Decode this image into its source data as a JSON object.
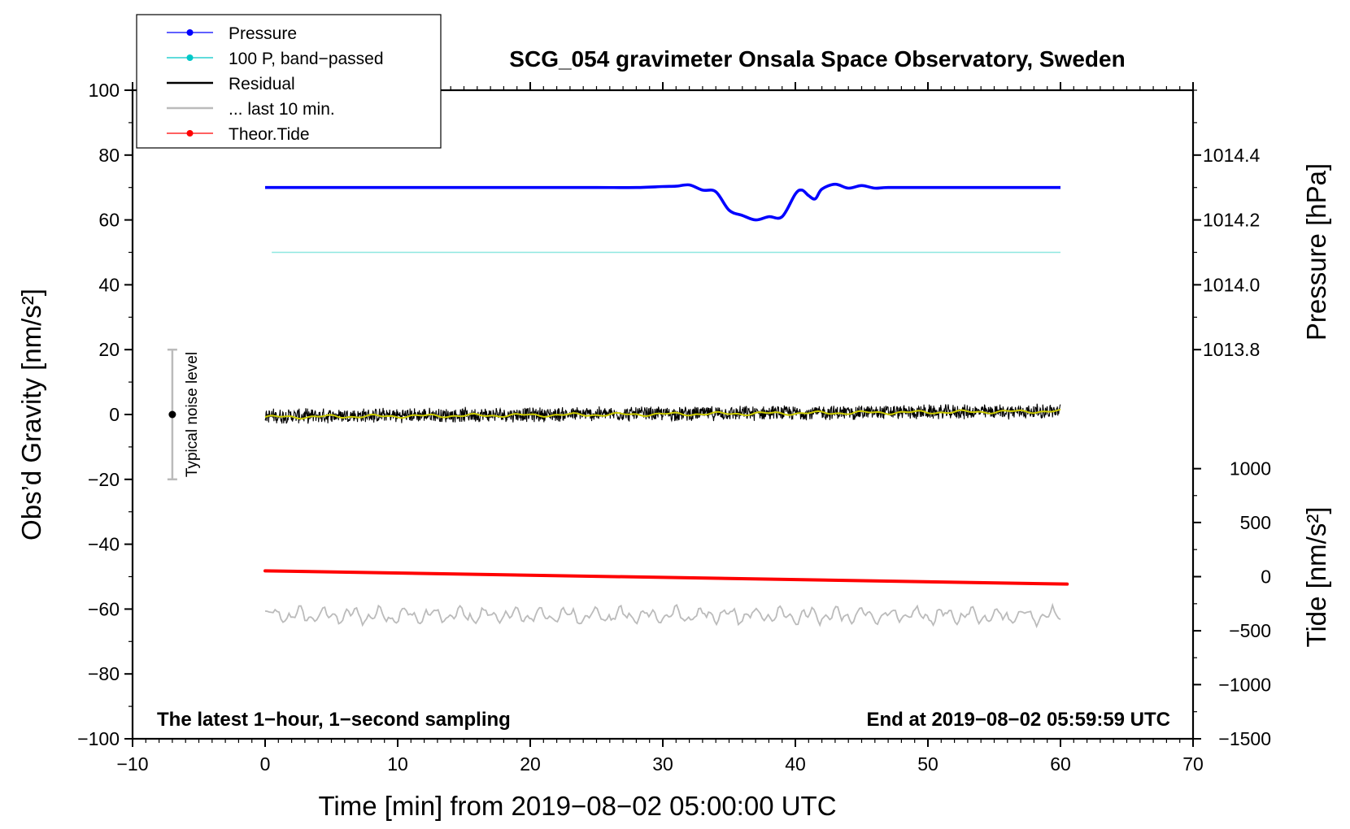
{
  "chart_data": {
    "type": "line",
    "title": "SCG_054 gravimeter Onsala Space Observatory, Sweden",
    "xlabel": "Time [min] from 2019−08−02 05:00:00 UTC",
    "ylabel_left": "Obs’d Gravity [nm/s²]",
    "ylabel_right_pressure": "Pressure [hPa]",
    "ylabel_right_tide": "Tide [nm/s²]",
    "xlim": [
      -10,
      70
    ],
    "ylim_left": [
      -100,
      100
    ],
    "x_ticks": [
      -10,
      0,
      10,
      20,
      30,
      40,
      50,
      60,
      70
    ],
    "x_tick_labels": [
      "−10",
      "0",
      "10",
      "20",
      "30",
      "40",
      "50",
      "60",
      "70"
    ],
    "y_ticks_left": [
      100,
      80,
      60,
      40,
      20,
      0,
      -20,
      -40,
      -60,
      -80,
      -100
    ],
    "y_tick_labels_left": [
      "100",
      "80",
      "60",
      "40",
      "20",
      "0",
      "−20",
      "−40",
      "−60",
      "−80",
      "−100"
    ],
    "pressure_axis": {
      "ticks": [
        1014.4,
        1014.2,
        1014.0,
        1013.8
      ],
      "tick_labels": [
        "1014.4",
        "1014.2",
        "1014.0",
        "1013.8"
      ],
      "gravity_equiv": [
        80,
        60,
        40,
        20
      ]
    },
    "tide_axis": {
      "ticks": [
        1000,
        500,
        0,
        -500,
        -1000,
        -1500
      ],
      "tick_labels": [
        "1000",
        "500",
        "0",
        "−500",
        "−1000",
        "−1500"
      ],
      "gravity_equiv": [
        -16.7,
        -33.3,
        -50,
        -66.7,
        -83.3,
        -100
      ]
    },
    "legend": [
      {
        "label": "Pressure",
        "color": "#0000ff",
        "marker": true
      },
      {
        "label": "100 P, band−passed",
        "color": "#00c8c8",
        "marker": true
      },
      {
        "label": "Residual",
        "color": "#000000",
        "marker": false
      },
      {
        "label": "... last 10 min.",
        "color": "#bbbbbb",
        "marker": false
      },
      {
        "label": "Theor.Tide",
        "color": "#ff0000",
        "marker": true
      }
    ],
    "series": [
      {
        "name": "Pressure",
        "color": "#0000ff",
        "x": [
          0,
          5,
          10,
          15,
          20,
          25,
          28,
          30,
          31,
          32,
          33,
          34,
          35,
          36,
          37,
          38,
          39,
          40,
          40.5,
          41,
          41.5,
          42,
          43,
          44,
          45,
          46,
          47,
          50,
          55,
          60
        ],
        "y": [
          70,
          70,
          70,
          70,
          70,
          70,
          70,
          70.3,
          70.4,
          70.8,
          69.2,
          68.7,
          63,
          61.4,
          60,
          61,
          61,
          68,
          69.2,
          67.5,
          66.5,
          69.5,
          71,
          69.8,
          70.6,
          69.8,
          70,
          70,
          70,
          70
        ]
      },
      {
        "name": "100 P, band−passed",
        "color": "#8ee8e0",
        "x": [
          0.5,
          60
        ],
        "y": [
          50,
          50
        ]
      },
      {
        "name": "Residual",
        "color": "#000000",
        "x_range": [
          0,
          60
        ],
        "mean_y": [
          -0.5,
          1
        ],
        "amplitude": 2.5
      },
      {
        "name": "Residual smoothed",
        "color": "#cccc00",
        "x": [
          0,
          60
        ],
        "y": [
          -0.8,
          1
        ]
      },
      {
        "name": "... last 10 min.",
        "color": "#bbbbbb",
        "x_range": [
          0,
          60
        ],
        "mean_y": -62,
        "amplitude": 2.5
      },
      {
        "name": "Theor.Tide",
        "color": "#ff0000",
        "x": [
          0,
          60.5
        ],
        "y": [
          -48.2,
          -52.3
        ]
      }
    ],
    "noise_bar": {
      "label": "Typical noise level",
      "x": -7,
      "center": 0,
      "range": [
        -20,
        20
      ]
    },
    "annotations": {
      "bottom_left": "The latest 1−hour, 1−second sampling",
      "bottom_right": "End at 2019−08−02 05:59:59 UTC"
    }
  }
}
